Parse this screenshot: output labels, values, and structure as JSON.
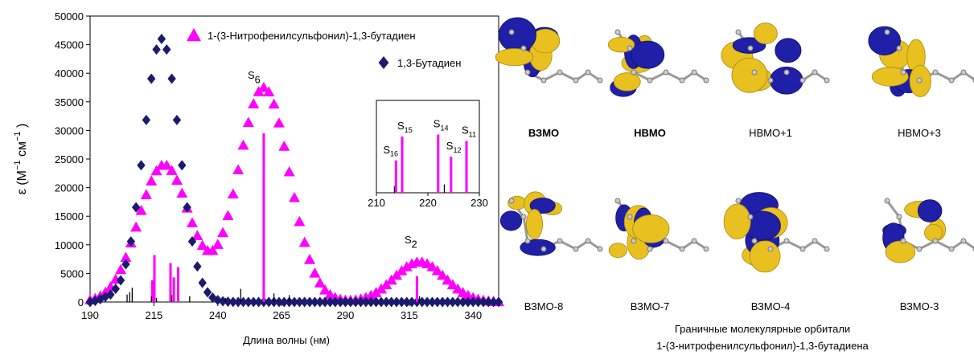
{
  "chart_data": [
    {
      "type": "scatter",
      "xlabel": "Длина волны (нм)",
      "ylabel_parts": [
        "ε (M",
        "−1",
        " см",
        "−1",
        " )"
      ],
      "xlim": [
        190,
        350
      ],
      "xticks": [
        190,
        215,
        240,
        265,
        290,
        315,
        340
      ],
      "ylim": [
        0,
        50000
      ],
      "yticks": [
        0,
        5000,
        10000,
        15000,
        20000,
        25000,
        30000,
        35000,
        40000,
        45000,
        50000
      ],
      "grid": false,
      "x": [
        190,
        192,
        194,
        196,
        198,
        200,
        202,
        204,
        206,
        208,
        210,
        212,
        214,
        216,
        218,
        220,
        222,
        224,
        226,
        228,
        230,
        232,
        234,
        236,
        238,
        240,
        242,
        244,
        246,
        248,
        250,
        252,
        254,
        256,
        258,
        260,
        262,
        264,
        266,
        268,
        270,
        272,
        274,
        276,
        278,
        280,
        282,
        284,
        286,
        288,
        290,
        292,
        294,
        296,
        298,
        300,
        302,
        304,
        306,
        308,
        310,
        312,
        314,
        316,
        318,
        320,
        322,
        324,
        326,
        328,
        330,
        332,
        334,
        336,
        338,
        340,
        342,
        344,
        346,
        348,
        350
      ],
      "series": [
        {
          "name": "1-(3-Нитрофенилсульфонил)-1,3-бутадиен",
          "color": "#ff00ff",
          "marker": "triangle",
          "values": [
            360,
            620,
            1060,
            1700,
            2640,
            3960,
            5660,
            7800,
            10320,
            13100,
            16010,
            18790,
            21170,
            22950,
            23890,
            23910,
            23000,
            21290,
            19020,
            16430,
            13850,
            11600,
            9900,
            9000,
            9020,
            10070,
            12130,
            15120,
            18880,
            23120,
            27420,
            31410,
            34660,
            36780,
            37510,
            36750,
            34610,
            31310,
            27230,
            22760,
            18260,
            14060,
            10430,
            7430,
            5060,
            3340,
            2110,
            1290,
            780,
            480,
            330,
            300,
            370,
            520,
            780,
            1160,
            1650,
            2280,
            3010,
            3820,
            4670,
            5480,
            6170,
            6690,
            6970,
            6970,
            6690,
            6170,
            5480,
            4670,
            3820,
            3010,
            2280,
            1650,
            1160,
            780,
            500,
            310,
            180,
            110,
            60
          ]
        },
        {
          "name": "1,3-Бутадиен",
          "color": "#1a1a6e",
          "marker": "diamond",
          "values": [
            0,
            200,
            500,
            900,
            1300,
            2300,
            3800,
            6600,
            10580,
            16560,
            23920,
            31830,
            39050,
            44160,
            46000,
            44160,
            39050,
            31830,
            23920,
            16560,
            10580,
            6210,
            3360,
            1700,
            780,
            330,
            130,
            50,
            10,
            0,
            0,
            0,
            0,
            0,
            0,
            0,
            0,
            0,
            0,
            0,
            0,
            0,
            0,
            0,
            0,
            0,
            0,
            0,
            0,
            0,
            0,
            0,
            0,
            0,
            0,
            0,
            0,
            0,
            0,
            0,
            0,
            0,
            0,
            0,
            0,
            0,
            0,
            0,
            0,
            0,
            0,
            0,
            0,
            0,
            0,
            0,
            0,
            0,
            0,
            0,
            0
          ]
        }
      ],
      "sticks": [
        {
          "color": "#ff00ff",
          "x": [
            214.4,
            215.2,
            221.5,
            222.8,
            224.5,
            258,
            318
          ],
          "values": [
            3800,
            8200,
            6800,
            4300,
            6100,
            29500,
            4500
          ]
        },
        {
          "color": "#000000",
          "x": [
            204.5,
            205.5,
            206.5,
            214,
            216,
            222,
            229,
            243,
            249,
            262,
            268,
            319
          ],
          "values": [
            1300,
            1700,
            2500,
            1000,
            700,
            1200,
            1000,
            700,
            2300,
            1500,
            1200,
            1000
          ]
        }
      ],
      "annotations": [
        {
          "text": "S",
          "sub": "6"
        },
        {
          "text": "S",
          "sub": "2"
        }
      ]
    },
    {
      "type": "stick",
      "xlim": [
        210,
        230
      ],
      "xticks": [
        210,
        220,
        230
      ],
      "ylim": [
        0,
        10000
      ],
      "series": [
        {
          "color": "#ff00ff",
          "x": [
            213.8,
            215,
            222,
            224.5,
            227.5
          ],
          "values": [
            3500,
            6100,
            6300,
            3900,
            5600
          ],
          "labels": [
            {
              "text": "S",
              "sub": "16"
            },
            {
              "text": "S",
              "sub": "15"
            },
            {
              "text": "S",
              "sub": "14"
            },
            {
              "text": "S",
              "sub": "12"
            },
            {
              "text": "S",
              "sub": "11"
            }
          ]
        },
        {
          "color": "#000000",
          "x": [
            213.5,
            223.2
          ],
          "values": [
            700,
            900
          ]
        }
      ]
    }
  ],
  "orbitals": {
    "items": [
      {
        "label": "ВЗМО",
        "color": "#3333cc",
        "bold": true
      },
      {
        "label": "НВМО",
        "color": "#ee2222",
        "bold": true
      },
      {
        "label": "НВМО+1",
        "color": "#000000",
        "bold": false
      },
      {
        "label": "НВМО+3",
        "color": "#000000",
        "bold": false
      },
      {
        "label": "ВЗМО-8",
        "color": "#000000",
        "bold": false
      },
      {
        "label": "ВЗМО-7",
        "color": "#000000",
        "bold": false
      },
      {
        "label": "ВЗМО-4",
        "color": "#000000",
        "bold": false
      },
      {
        "label": "ВЗМО-3",
        "color": "#000000",
        "bold": false
      }
    ],
    "caption": [
      "Граничные молекулярные орбитали",
      "1-(3-нитрофенилсульфонил)-1,3-бутадиена"
    ]
  }
}
